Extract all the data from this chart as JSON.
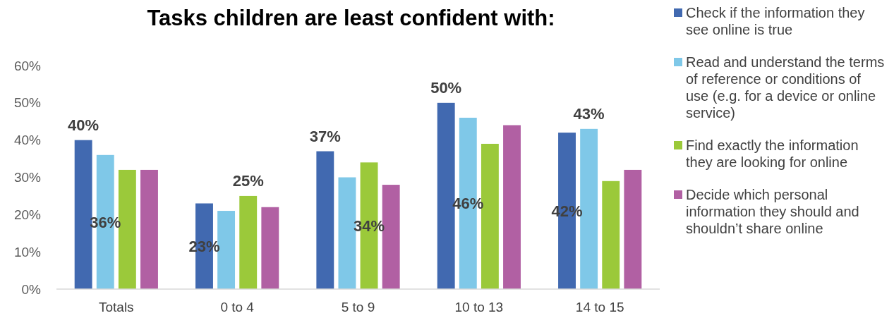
{
  "chart_data": {
    "type": "bar",
    "title": "Tasks children are least confident with:",
    "categories": [
      "Totals",
      "0 to 4",
      "5 to 9",
      "10 to 13",
      "14 to 15"
    ],
    "series": [
      {
        "name": "Check if the information they see online is true",
        "color": "#4169b0",
        "values": [
          40,
          23,
          37,
          50,
          42
        ],
        "value_labels": [
          "40%",
          "23%",
          "37%",
          "50%",
          "42%"
        ]
      },
      {
        "name": "Read and understand the terms of reference or conditions of use (e.g. for a device or online service)",
        "color": "#7fc8e8",
        "values": [
          36,
          21,
          30,
          46,
          43
        ],
        "value_labels": [
          "36%",
          null,
          null,
          "46%",
          "43%"
        ]
      },
      {
        "name": "Find exactly the information they are looking for online",
        "color": "#9bc93a",
        "values": [
          32,
          25,
          34,
          39,
          29
        ],
        "value_labels": [
          null,
          "25%",
          "34%",
          null,
          null
        ]
      },
      {
        "name": "Decide which personal information they should and shouldn’t share online",
        "color": "#b160a3",
        "values": [
          32,
          22,
          28,
          44,
          32
        ],
        "value_labels": [
          null,
          null,
          null,
          null,
          null
        ]
      }
    ],
    "ylim": [
      0,
      60
    ],
    "yticks": [
      {
        "value": 0,
        "label": "0%"
      },
      {
        "value": 10,
        "label": "10%"
      },
      {
        "value": 20,
        "label": "20%"
      },
      {
        "value": 30,
        "label": "30%"
      },
      {
        "value": 40,
        "label": "40%"
      },
      {
        "value": 50,
        "label": "50%"
      },
      {
        "value": 60,
        "label": "60%"
      }
    ],
    "grid": false,
    "legend": "right"
  }
}
